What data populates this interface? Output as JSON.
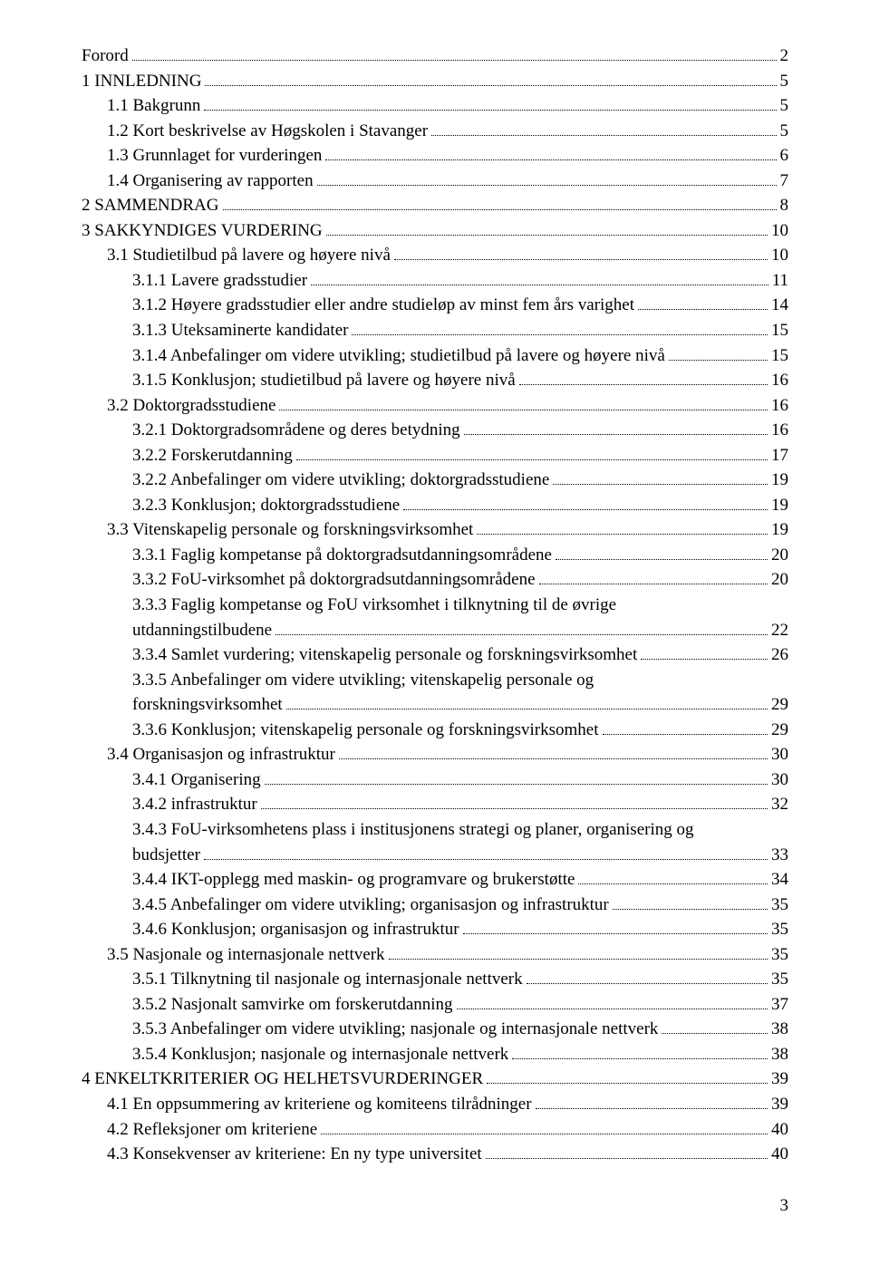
{
  "toc": [
    {
      "indent": 0,
      "label": "Forord",
      "page": "2"
    },
    {
      "indent": 0,
      "label": "1 INNLEDNING",
      "page": "5"
    },
    {
      "indent": 1,
      "label": "1.1 Bakgrunn",
      "page": "5"
    },
    {
      "indent": 1,
      "label": "1.2 Kort beskrivelse av Høgskolen i Stavanger",
      "page": "5"
    },
    {
      "indent": 1,
      "label": "1.3 Grunnlaget for vurderingen",
      "page": "6"
    },
    {
      "indent": 1,
      "label": "1.4 Organisering av rapporten",
      "page": "7"
    },
    {
      "indent": 0,
      "label": "2 SAMMENDRAG",
      "page": "8"
    },
    {
      "indent": 0,
      "label": "3 SAKKYNDIGES VURDERING",
      "page": "10"
    },
    {
      "indent": 1,
      "label": "3.1 Studietilbud på lavere og høyere nivå",
      "page": "10"
    },
    {
      "indent": 2,
      "label": "3.1.1 Lavere gradsstudier",
      "page": "11"
    },
    {
      "indent": 2,
      "label": "3.1.2 Høyere gradsstudier eller andre studieløp av minst fem års varighet",
      "page": "14"
    },
    {
      "indent": 2,
      "label": "3.1.3 Uteksaminerte kandidater",
      "page": "15"
    },
    {
      "indent": 2,
      "label": "3.1.4 Anbefalinger om videre utvikling; studietilbud på lavere og høyere nivå",
      "page": "15"
    },
    {
      "indent": 2,
      "label": "3.1.5 Konklusjon; studietilbud på lavere og høyere nivå",
      "page": "16"
    },
    {
      "indent": 1,
      "label": "3.2 Doktorgradsstudiene",
      "page": "16"
    },
    {
      "indent": 2,
      "label": "3.2.1 Doktorgradsområdene og deres betydning",
      "page": "16"
    },
    {
      "indent": 2,
      "label": "3.2.2 Forskerutdanning",
      "page": "17"
    },
    {
      "indent": 2,
      "label": "3.2.2 Anbefalinger om videre utvikling; doktorgradsstudiene",
      "page": "19"
    },
    {
      "indent": 2,
      "label": "3.2.3 Konklusjon; doktorgradsstudiene",
      "page": "19"
    },
    {
      "indent": 1,
      "label": "3.3 Vitenskapelig personale og forskningsvirksomhet",
      "page": "19"
    },
    {
      "indent": 2,
      "label": "3.3.1 Faglig kompetanse på doktorgradsutdanningsområdene",
      "page": "20"
    },
    {
      "indent": 2,
      "label": "3.3.2 FoU-virksomhet på doktorgradsutdanningsområdene",
      "page": "20"
    },
    {
      "indent": 2,
      "multiline": true,
      "label1": "3.3.3 Faglig kompetanse og FoU virksomhet i tilknytning til de øvrige",
      "label2": "utdanningstilbudene",
      "page": "22"
    },
    {
      "indent": 2,
      "label": "3.3.4 Samlet vurdering; vitenskapelig personale og forskningsvirksomhet",
      "page": "26"
    },
    {
      "indent": 2,
      "multiline": true,
      "label1": "3.3.5 Anbefalinger om videre utvikling; vitenskapelig personale og",
      "label2": "forskningsvirksomhet",
      "page": "29"
    },
    {
      "indent": 2,
      "label": "3.3.6 Konklusjon; vitenskapelig personale og forskningsvirksomhet",
      "page": "29"
    },
    {
      "indent": 1,
      "label": "3.4 Organisasjon og infrastruktur",
      "page": "30"
    },
    {
      "indent": 2,
      "label": "3.4.1 Organisering",
      "page": "30"
    },
    {
      "indent": 2,
      "label": "3.4.2 infrastruktur",
      "page": "32"
    },
    {
      "indent": 2,
      "multiline": true,
      "label1": "3.4.3 FoU-virksomhetens plass i institusjonens strategi og planer, organisering og",
      "label2": "budsjetter",
      "page": "33"
    },
    {
      "indent": 2,
      "label": "3.4.4 IKT-opplegg med maskin- og programvare og brukerstøtte",
      "page": "34"
    },
    {
      "indent": 2,
      "label": "3.4.5 Anbefalinger om videre utvikling; organisasjon og infrastruktur",
      "page": "35"
    },
    {
      "indent": 2,
      "label": "3.4.6 Konklusjon; organisasjon og infrastruktur",
      "page": "35"
    },
    {
      "indent": 1,
      "label": "3.5 Nasjonale og internasjonale nettverk",
      "page": "35"
    },
    {
      "indent": 2,
      "label": "3.5.1 Tilknytning til nasjonale og internasjonale nettverk",
      "page": "35"
    },
    {
      "indent": 2,
      "label": "3.5.2 Nasjonalt samvirke om forskerutdanning",
      "page": "37"
    },
    {
      "indent": 2,
      "label": "3.5.3 Anbefalinger om videre utvikling; nasjonale og internasjonale nettverk",
      "page": "38"
    },
    {
      "indent": 2,
      "label": "3.5.4 Konklusjon; nasjonale og internasjonale nettverk",
      "page": "38"
    },
    {
      "indent": 0,
      "label": "4 ENKELTKRITERIER OG HELHETSVURDERINGER",
      "page": "39"
    },
    {
      "indent": 1,
      "label": "4.1 En oppsummering av kriteriene og komiteens tilrådninger",
      "page": "39"
    },
    {
      "indent": 1,
      "label": "4.2 Refleksjoner om kriteriene",
      "page": "40"
    },
    {
      "indent": 1,
      "label": "4.3 Konsekvenser av kriteriene: En ny type universitet",
      "page": "40"
    }
  ],
  "footer_page": "3"
}
